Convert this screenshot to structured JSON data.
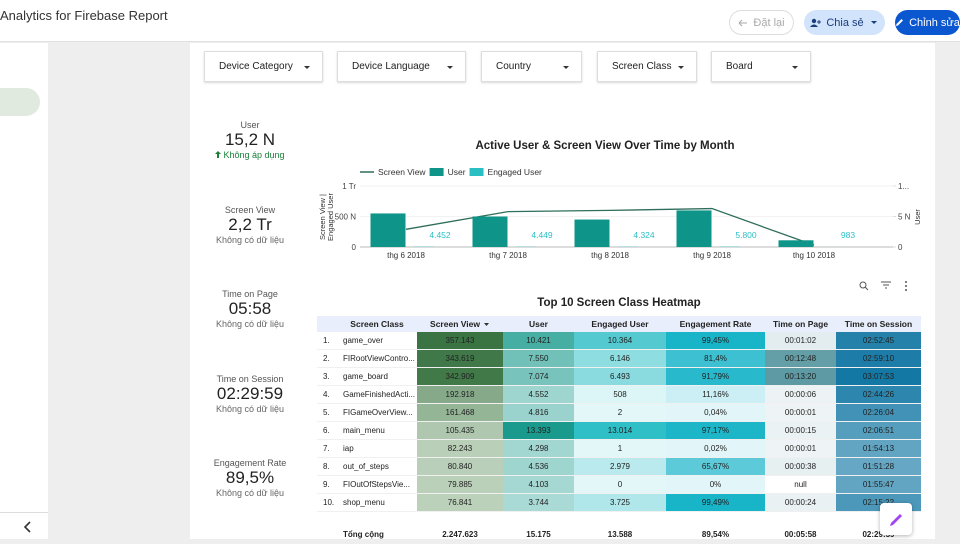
{
  "header": {
    "title": "Analytics for Firebase Report",
    "reset": "Đặt lại",
    "share": "Chia sẻ",
    "edit": "Chỉnh sửa"
  },
  "filters": [
    "Device Category",
    "Device Language",
    "Country",
    "Screen Class",
    "Board"
  ],
  "scorecards": [
    {
      "label": "User",
      "value": "15,2 N",
      "note": "Không áp dụng"
    },
    {
      "label": "Screen View",
      "value": "2,2 Tr",
      "note": "Không có dữ liệu"
    },
    {
      "label": "Time on Page",
      "value": "05:58",
      "note": "Không có dữ liệu"
    },
    {
      "label": "Time on Session",
      "value": "02:29:59",
      "note": "Không có dữ liệu"
    },
    {
      "label": "Engagement Rate",
      "value": "89,5%",
      "note": "Không có dữ liệu"
    }
  ],
  "chart_data": {
    "type": "combo",
    "title": "Active User & Screen View Over Time by Month",
    "categories": [
      "thg 6 2018",
      "thg 7 2018",
      "thg 8 2018",
      "thg 9 2018",
      "thg 10 2018"
    ],
    "ylabel": [
      "Screen View |",
      "Engaged User"
    ],
    "y2label": "User",
    "ylim": [
      0,
      1000000
    ],
    "yticks": [
      0,
      {
        "value": 500000,
        "label": "500 N"
      },
      {
        "value": 1000000,
        "label": "1 Tr"
      }
    ],
    "y2lim": [
      0,
      10000
    ],
    "y2ticks": [
      0,
      {
        "value": 5000,
        "label": "5 N"
      },
      {
        "value": 10000,
        "label": "1..."
      }
    ],
    "series": [
      {
        "name": "Screen View",
        "kind": "line",
        "color": "#2f6e5c",
        "values": [
          290000,
          580000,
          600000,
          630000,
          30000
        ]
      },
      {
        "name": "User",
        "kind": "bar",
        "axis": "y2",
        "color": "#0e9488",
        "values": [
          5500,
          5000,
          4500,
          6000,
          1100
        ]
      },
      {
        "name": "Engaged User",
        "kind": "bar",
        "color": "#2bbfc4",
        "values": [
          4452,
          4449,
          4324,
          5800,
          983
        ],
        "value_labels": [
          "4.452",
          "4.449",
          "4.324",
          "5.800",
          "983"
        ]
      }
    ]
  },
  "table": {
    "title": "Top 10 Screen Class Heatmap",
    "columns": [
      "Screen Class",
      "Screen View",
      "User",
      "Engaged User",
      "Engagement Rate",
      "Time on Page",
      "Time on Session"
    ],
    "rows": [
      [
        "1.",
        "game_over",
        "357.143",
        "10.421",
        "10.364",
        "99,45%",
        "00:01:02",
        "02:52:45"
      ],
      [
        "2.",
        "FIRootViewContro...",
        "343.619",
        "7.550",
        "6.146",
        "81,4%",
        "00:12:48",
        "02:59:10"
      ],
      [
        "3.",
        "game_board",
        "342.909",
        "7.074",
        "6.493",
        "91,79%",
        "00:13:20",
        "03:07:53"
      ],
      [
        "4.",
        "GameFinishedActi...",
        "192.918",
        "4.552",
        "508",
        "11,16%",
        "00:00:06",
        "02:44:26"
      ],
      [
        "5.",
        "FIGameOverView...",
        "161.468",
        "4.816",
        "2",
        "0,04%",
        "00:00:01",
        "02:26:04"
      ],
      [
        "6.",
        "main_menu",
        "105.435",
        "13.393",
        "13.014",
        "97,17%",
        "00:00:15",
        "02:06:51"
      ],
      [
        "7.",
        "iap",
        "82.243",
        "4.298",
        "1",
        "0,02%",
        "00:00:01",
        "01:54:13"
      ],
      [
        "8.",
        "out_of_steps",
        "80.840",
        "4.536",
        "2.979",
        "65,67%",
        "00:00:38",
        "01:51:28"
      ],
      [
        "9.",
        "FIOutOfStepsVie...",
        "79.885",
        "4.103",
        "0",
        "0%",
        "null",
        "01:55:47"
      ],
      [
        "10.",
        "shop_menu",
        "76.841",
        "3.744",
        "3.725",
        "99,49%",
        "00:00:24",
        "02:15:22"
      ]
    ],
    "total": [
      "Tổng cộng",
      "2.247.623",
      "15.175",
      "13.588",
      "89,54%",
      "00:05:58",
      "02:29:59"
    ]
  }
}
